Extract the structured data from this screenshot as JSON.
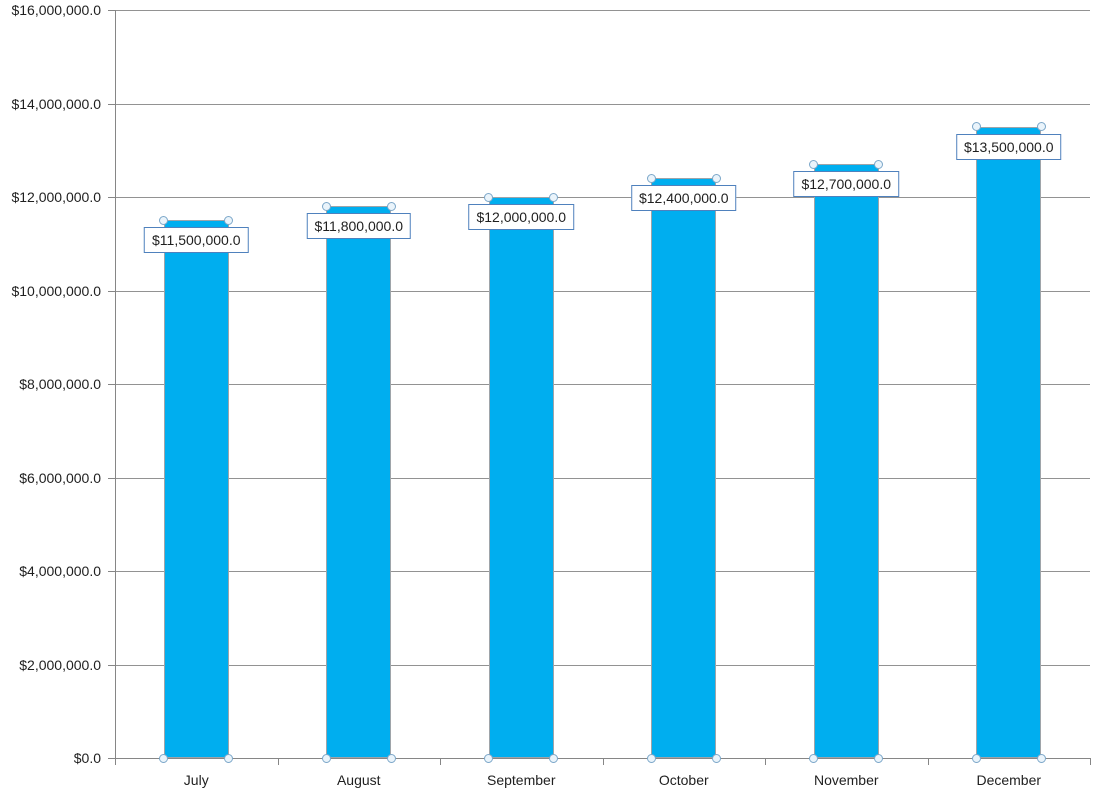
{
  "chart_data": {
    "type": "bar",
    "title": "",
    "xlabel": "",
    "ylabel": "",
    "categories": [
      "July",
      "August",
      "September",
      "October",
      "November",
      "December"
    ],
    "series": [
      {
        "name": "monthly-values",
        "values": [
          11500000,
          11800000,
          12000000,
          12400000,
          12700000,
          13500000
        ],
        "data_labels": [
          "$11,500,000.0",
          "$11,800,000.0",
          "$12,000,000.0",
          "$12,400,000.0",
          "$12,700,000.0",
          "$13,500,000.0"
        ]
      }
    ],
    "ylim": [
      0,
      16000000
    ],
    "y_ticks": [
      {
        "value": 0,
        "label": "$0.0"
      },
      {
        "value": 2000000,
        "label": "$2,000,000.0"
      },
      {
        "value": 4000000,
        "label": "$4,000,000.0"
      },
      {
        "value": 6000000,
        "label": "$6,000,000.0"
      },
      {
        "value": 8000000,
        "label": "$8,000,000.0"
      },
      {
        "value": 10000000,
        "label": "$10,000,000.0"
      },
      {
        "value": 12000000,
        "label": "$12,000,000.0"
      },
      {
        "value": 14000000,
        "label": "$14,000,000.0"
      },
      {
        "value": 16000000,
        "label": "$16,000,000.0"
      }
    ],
    "grid": true,
    "legend": "none",
    "selection_handles_visible": true,
    "colors": {
      "bar_fill": "#00AEEF",
      "bar_border": "#9EA4A9",
      "gridline": "#929292",
      "axis": "#868686",
      "tick": "#868686",
      "text": "#1F1F1F",
      "data_label_border": "#4F81BD",
      "data_label_bg": "#FFFFFF",
      "handle_border": "#7CA7C9",
      "handle_fill": "#EAF4FB"
    }
  }
}
